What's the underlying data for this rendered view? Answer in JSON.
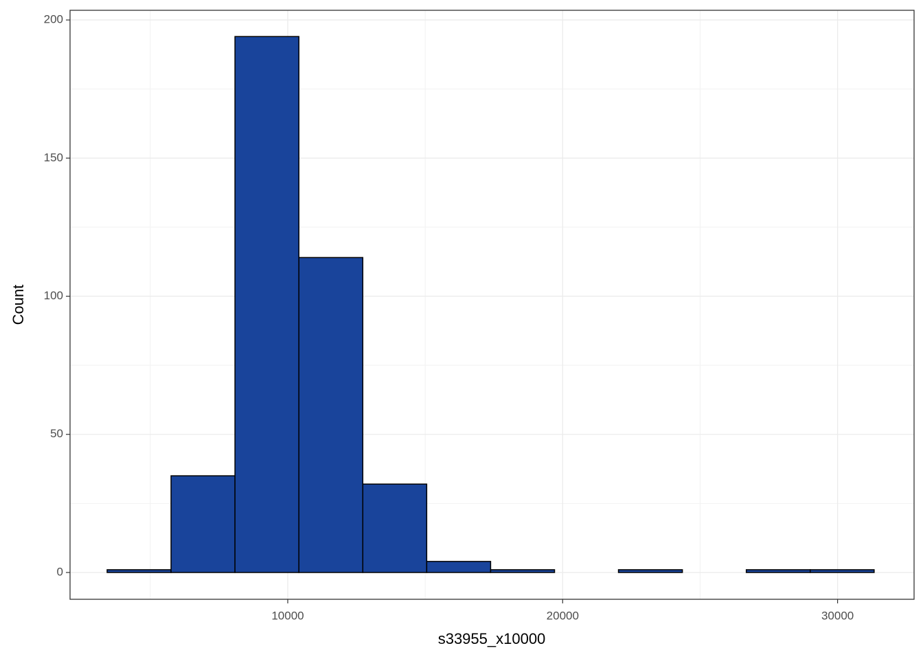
{
  "chart_data": {
    "type": "histogram",
    "x_label": "s33955_x10000",
    "y_label": "Count",
    "bins": [
      3430,
      5755,
      8080,
      10405,
      12730,
      15055,
      17380,
      19705,
      22030,
      24355,
      26680,
      29005,
      31330
    ],
    "counts": [
      1,
      35,
      194,
      114,
      32,
      4,
      1,
      0,
      1,
      0,
      1,
      1
    ],
    "color": "#19449b",
    "xlim": [
      2081,
      32783
    ],
    "ylim": [
      -9.7,
      203.5
    ],
    "xticks": [
      10000,
      20000,
      30000
    ],
    "yticks": [
      0,
      50,
      100,
      150,
      200
    ],
    "grid": true
  }
}
